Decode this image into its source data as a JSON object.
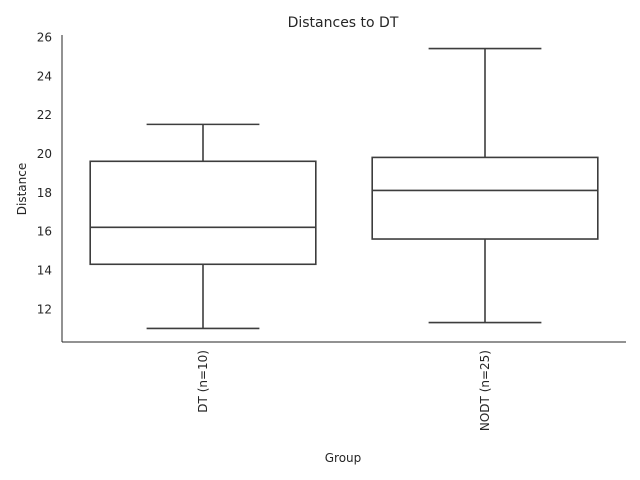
{
  "chart_data": {
    "type": "box",
    "title": "Distances to DT",
    "xlabel": "Group",
    "ylabel": "Distance",
    "ylim": [
      10.3,
      26.1
    ],
    "yticks": [
      12,
      14,
      16,
      18,
      20,
      22,
      24,
      26
    ],
    "grid": false,
    "categories": [
      "DT (n=10)",
      "NODT (n=25)"
    ],
    "boxes": [
      {
        "category": "DT (n=10)",
        "whisker_low": 11.0,
        "q1": 14.3,
        "median": 16.2,
        "q3": 19.6,
        "whisker_high": 21.5
      },
      {
        "category": "NODT (n=25)",
        "whisker_low": 11.3,
        "q1": 15.6,
        "median": 18.1,
        "q3": 19.8,
        "whisker_high": 25.4
      }
    ],
    "colors": {
      "line": "#3d3d3d",
      "axis": "#262626",
      "box_fill": "#ffffff"
    }
  }
}
